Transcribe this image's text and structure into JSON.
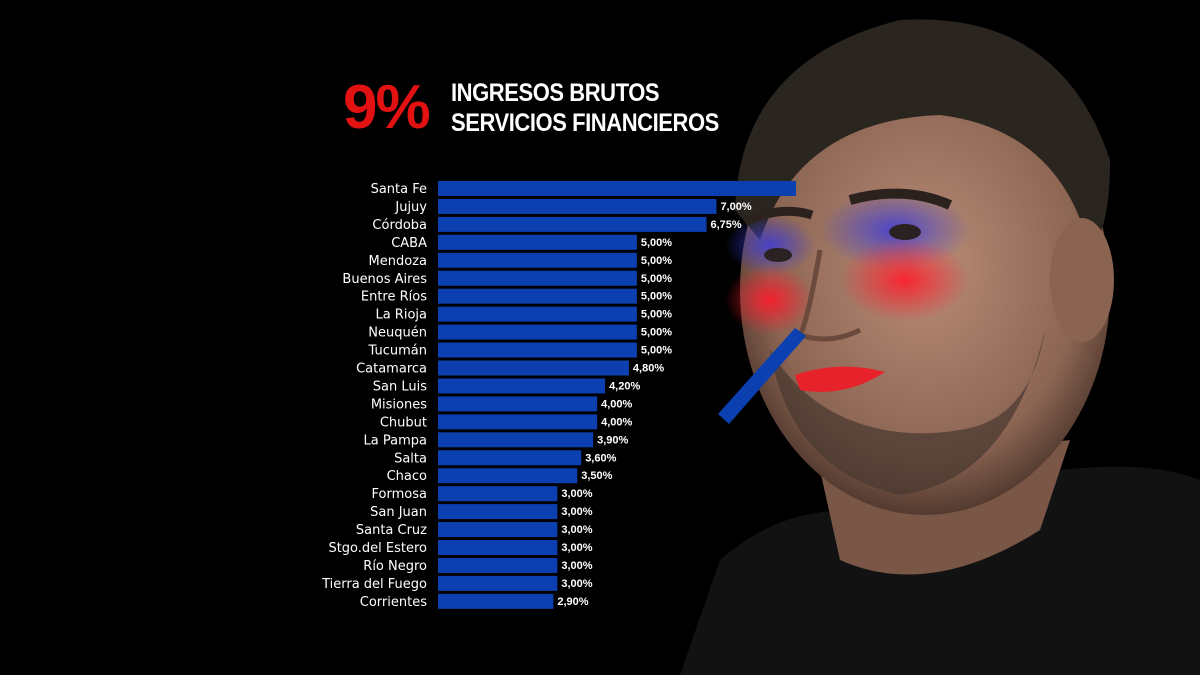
{
  "header": {
    "big_value": "9%",
    "title_line1": "INGRESOS BRUTOS",
    "title_line2": "SERVICIOS FINANCIEROS"
  },
  "colors": {
    "bar": "#0c3fb0",
    "accent": "#e31212",
    "background": "#000000"
  },
  "chart_data": {
    "type": "bar",
    "orientation": "horizontal",
    "title": "INGRESOS BRUTOS SERVICIOS FINANCIEROS",
    "categories": [
      "Santa Fe",
      "Jujuy",
      "Córdoba",
      "CABA",
      "Mendoza",
      "Buenos Aires",
      "Entre Ríos",
      "La Rioja",
      "Neuquén",
      "Tucumán",
      "Catamarca",
      "San Luis",
      "Misiones",
      "Chubut",
      "La Pampa",
      "Salta",
      "Chaco",
      "Formosa",
      "San Juan",
      "Santa Cruz",
      "Stgo.del Estero",
      "Río Negro",
      "Tierra del Fuego",
      "Corrientes"
    ],
    "values": [
      9.0,
      7.0,
      6.75,
      5.0,
      5.0,
      5.0,
      5.0,
      5.0,
      5.0,
      5.0,
      4.8,
      4.2,
      4.0,
      4.0,
      3.9,
      3.6,
      3.5,
      3.0,
      3.0,
      3.0,
      3.0,
      3.0,
      3.0,
      2.9
    ],
    "value_labels": [
      "",
      "7,00%",
      "6,75%",
      "5,00%",
      "5,00%",
      "5,00%",
      "5,00%",
      "5,00%",
      "5,00%",
      "5,00%",
      "4,80%",
      "4,20%",
      "4,00%",
      "4,00%",
      "3,90%",
      "3,60%",
      "3,50%",
      "3,00%",
      "3,00%",
      "3,00%",
      "3,00%",
      "3,00%",
      "3,00%",
      "2,90%"
    ],
    "highlight": {
      "category": "Santa Fe",
      "label": "9%"
    },
    "xlim": [
      0,
      9.0
    ],
    "grid": false,
    "legend": "none"
  }
}
